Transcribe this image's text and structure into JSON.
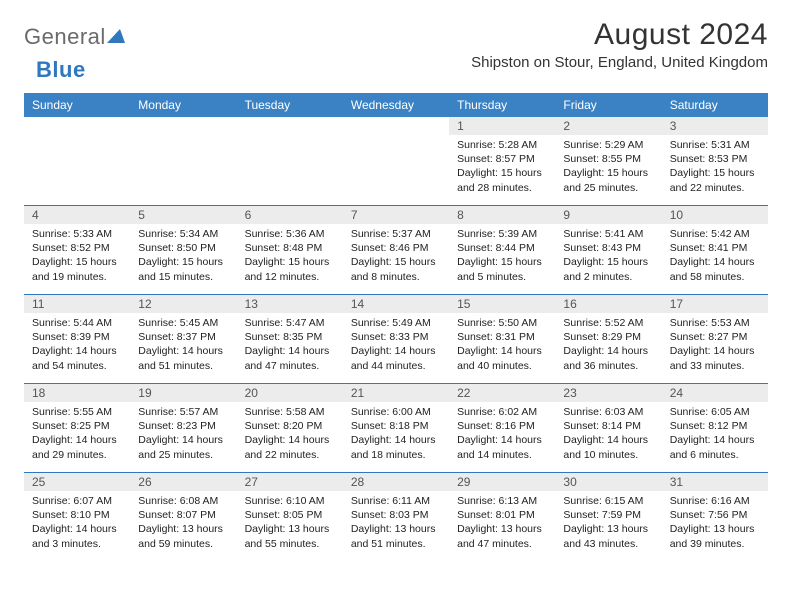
{
  "logo": {
    "part1": "General",
    "part2": "Blue"
  },
  "title": "August 2024",
  "location": "Shipston on Stour, England, United Kingdom",
  "daynames": [
    "Sunday",
    "Monday",
    "Tuesday",
    "Wednesday",
    "Thursday",
    "Friday",
    "Saturday"
  ],
  "colors": {
    "header_bg": "#3a82c0",
    "header_text": "#ffffff",
    "daynum_bg": "#ececec",
    "divider": "#2f78c0",
    "logo_gray": "#7a7a7a",
    "logo_blue": "#2f78c0"
  },
  "weeks": [
    [
      {
        "n": "",
        "sunrise": "",
        "sunset": "",
        "day1": "",
        "day2": ""
      },
      {
        "n": "",
        "sunrise": "",
        "sunset": "",
        "day1": "",
        "day2": ""
      },
      {
        "n": "",
        "sunrise": "",
        "sunset": "",
        "day1": "",
        "day2": ""
      },
      {
        "n": "",
        "sunrise": "",
        "sunset": "",
        "day1": "",
        "day2": ""
      },
      {
        "n": "1",
        "sunrise": "Sunrise: 5:28 AM",
        "sunset": "Sunset: 8:57 PM",
        "day1": "Daylight: 15 hours",
        "day2": "and 28 minutes."
      },
      {
        "n": "2",
        "sunrise": "Sunrise: 5:29 AM",
        "sunset": "Sunset: 8:55 PM",
        "day1": "Daylight: 15 hours",
        "day2": "and 25 minutes."
      },
      {
        "n": "3",
        "sunrise": "Sunrise: 5:31 AM",
        "sunset": "Sunset: 8:53 PM",
        "day1": "Daylight: 15 hours",
        "day2": "and 22 minutes."
      }
    ],
    [
      {
        "n": "4",
        "sunrise": "Sunrise: 5:33 AM",
        "sunset": "Sunset: 8:52 PM",
        "day1": "Daylight: 15 hours",
        "day2": "and 19 minutes."
      },
      {
        "n": "5",
        "sunrise": "Sunrise: 5:34 AM",
        "sunset": "Sunset: 8:50 PM",
        "day1": "Daylight: 15 hours",
        "day2": "and 15 minutes."
      },
      {
        "n": "6",
        "sunrise": "Sunrise: 5:36 AM",
        "sunset": "Sunset: 8:48 PM",
        "day1": "Daylight: 15 hours",
        "day2": "and 12 minutes."
      },
      {
        "n": "7",
        "sunrise": "Sunrise: 5:37 AM",
        "sunset": "Sunset: 8:46 PM",
        "day1": "Daylight: 15 hours",
        "day2": "and 8 minutes."
      },
      {
        "n": "8",
        "sunrise": "Sunrise: 5:39 AM",
        "sunset": "Sunset: 8:44 PM",
        "day1": "Daylight: 15 hours",
        "day2": "and 5 minutes."
      },
      {
        "n": "9",
        "sunrise": "Sunrise: 5:41 AM",
        "sunset": "Sunset: 8:43 PM",
        "day1": "Daylight: 15 hours",
        "day2": "and 2 minutes."
      },
      {
        "n": "10",
        "sunrise": "Sunrise: 5:42 AM",
        "sunset": "Sunset: 8:41 PM",
        "day1": "Daylight: 14 hours",
        "day2": "and 58 minutes."
      }
    ],
    [
      {
        "n": "11",
        "sunrise": "Sunrise: 5:44 AM",
        "sunset": "Sunset: 8:39 PM",
        "day1": "Daylight: 14 hours",
        "day2": "and 54 minutes."
      },
      {
        "n": "12",
        "sunrise": "Sunrise: 5:45 AM",
        "sunset": "Sunset: 8:37 PM",
        "day1": "Daylight: 14 hours",
        "day2": "and 51 minutes."
      },
      {
        "n": "13",
        "sunrise": "Sunrise: 5:47 AM",
        "sunset": "Sunset: 8:35 PM",
        "day1": "Daylight: 14 hours",
        "day2": "and 47 minutes."
      },
      {
        "n": "14",
        "sunrise": "Sunrise: 5:49 AM",
        "sunset": "Sunset: 8:33 PM",
        "day1": "Daylight: 14 hours",
        "day2": "and 44 minutes."
      },
      {
        "n": "15",
        "sunrise": "Sunrise: 5:50 AM",
        "sunset": "Sunset: 8:31 PM",
        "day1": "Daylight: 14 hours",
        "day2": "and 40 minutes."
      },
      {
        "n": "16",
        "sunrise": "Sunrise: 5:52 AM",
        "sunset": "Sunset: 8:29 PM",
        "day1": "Daylight: 14 hours",
        "day2": "and 36 minutes."
      },
      {
        "n": "17",
        "sunrise": "Sunrise: 5:53 AM",
        "sunset": "Sunset: 8:27 PM",
        "day1": "Daylight: 14 hours",
        "day2": "and 33 minutes."
      }
    ],
    [
      {
        "n": "18",
        "sunrise": "Sunrise: 5:55 AM",
        "sunset": "Sunset: 8:25 PM",
        "day1": "Daylight: 14 hours",
        "day2": "and 29 minutes."
      },
      {
        "n": "19",
        "sunrise": "Sunrise: 5:57 AM",
        "sunset": "Sunset: 8:23 PM",
        "day1": "Daylight: 14 hours",
        "day2": "and 25 minutes."
      },
      {
        "n": "20",
        "sunrise": "Sunrise: 5:58 AM",
        "sunset": "Sunset: 8:20 PM",
        "day1": "Daylight: 14 hours",
        "day2": "and 22 minutes."
      },
      {
        "n": "21",
        "sunrise": "Sunrise: 6:00 AM",
        "sunset": "Sunset: 8:18 PM",
        "day1": "Daylight: 14 hours",
        "day2": "and 18 minutes."
      },
      {
        "n": "22",
        "sunrise": "Sunrise: 6:02 AM",
        "sunset": "Sunset: 8:16 PM",
        "day1": "Daylight: 14 hours",
        "day2": "and 14 minutes."
      },
      {
        "n": "23",
        "sunrise": "Sunrise: 6:03 AM",
        "sunset": "Sunset: 8:14 PM",
        "day1": "Daylight: 14 hours",
        "day2": "and 10 minutes."
      },
      {
        "n": "24",
        "sunrise": "Sunrise: 6:05 AM",
        "sunset": "Sunset: 8:12 PM",
        "day1": "Daylight: 14 hours",
        "day2": "and 6 minutes."
      }
    ],
    [
      {
        "n": "25",
        "sunrise": "Sunrise: 6:07 AM",
        "sunset": "Sunset: 8:10 PM",
        "day1": "Daylight: 14 hours",
        "day2": "and 3 minutes."
      },
      {
        "n": "26",
        "sunrise": "Sunrise: 6:08 AM",
        "sunset": "Sunset: 8:07 PM",
        "day1": "Daylight: 13 hours",
        "day2": "and 59 minutes."
      },
      {
        "n": "27",
        "sunrise": "Sunrise: 6:10 AM",
        "sunset": "Sunset: 8:05 PM",
        "day1": "Daylight: 13 hours",
        "day2": "and 55 minutes."
      },
      {
        "n": "28",
        "sunrise": "Sunrise: 6:11 AM",
        "sunset": "Sunset: 8:03 PM",
        "day1": "Daylight: 13 hours",
        "day2": "and 51 minutes."
      },
      {
        "n": "29",
        "sunrise": "Sunrise: 6:13 AM",
        "sunset": "Sunset: 8:01 PM",
        "day1": "Daylight: 13 hours",
        "day2": "and 47 minutes."
      },
      {
        "n": "30",
        "sunrise": "Sunrise: 6:15 AM",
        "sunset": "Sunset: 7:59 PM",
        "day1": "Daylight: 13 hours",
        "day2": "and 43 minutes."
      },
      {
        "n": "31",
        "sunrise": "Sunrise: 6:16 AM",
        "sunset": "Sunset: 7:56 PM",
        "day1": "Daylight: 13 hours",
        "day2": "and 39 minutes."
      }
    ]
  ]
}
